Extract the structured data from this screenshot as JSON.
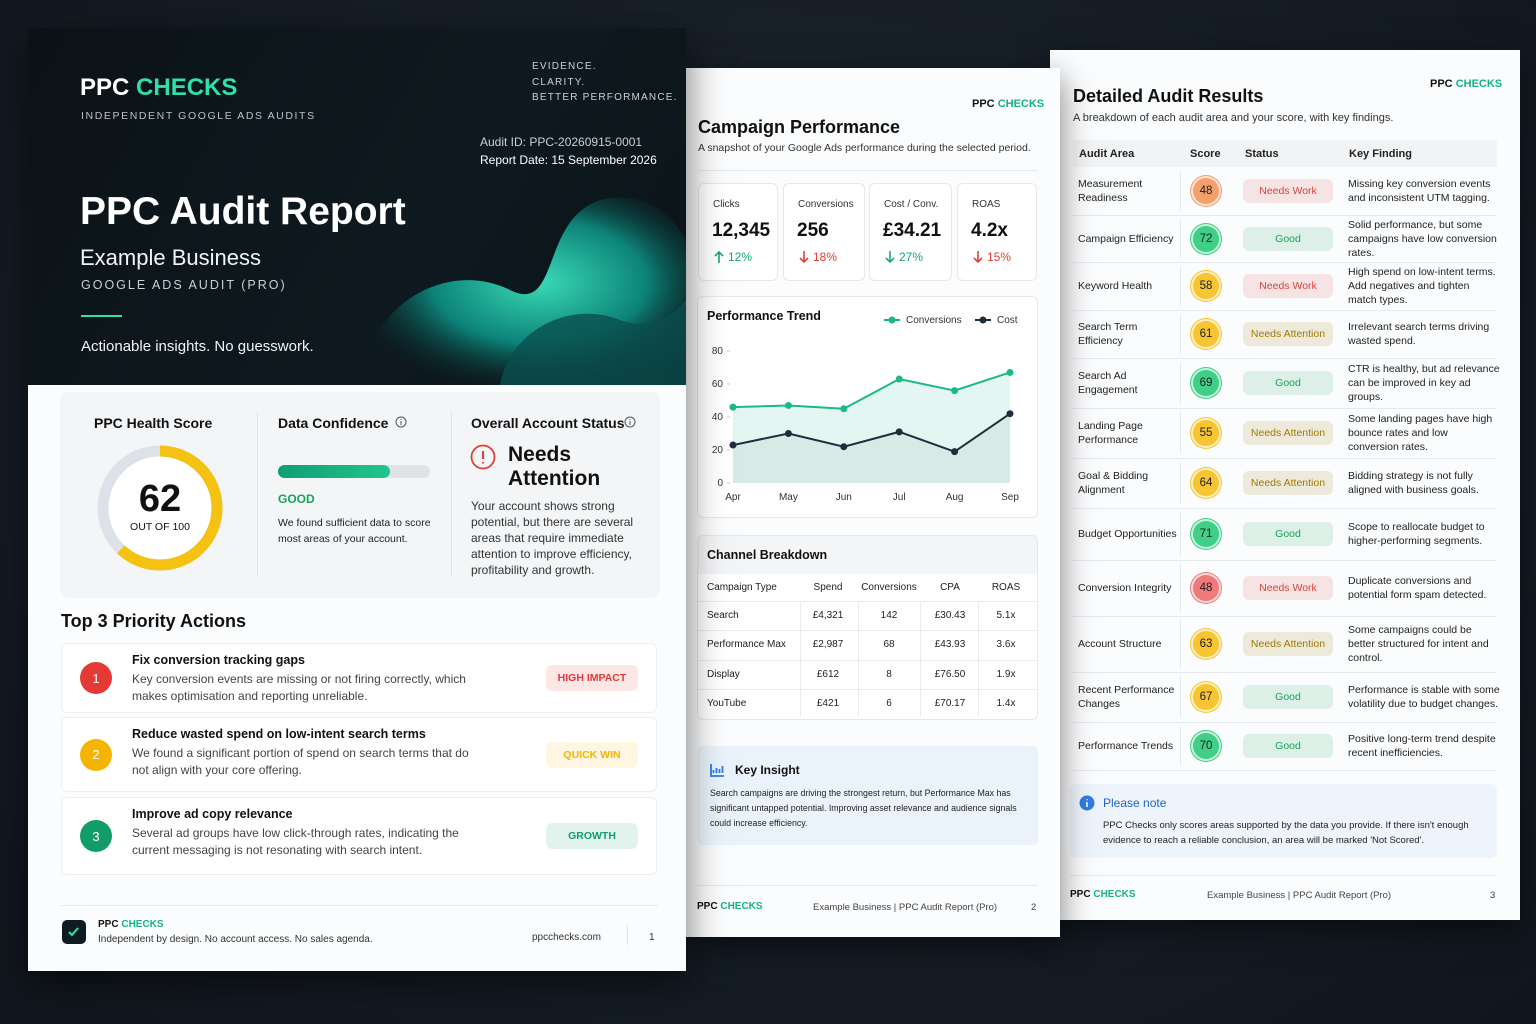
{
  "brand": {
    "ppc": "PPC",
    "checks": "CHECKS"
  },
  "page1": {
    "tagline": "INDEPENDENT GOOGLE ADS AUDITS",
    "motto": [
      "EVIDENCE.",
      "CLARITY.",
      "BETTER PERFORMANCE."
    ],
    "audit_id": "Audit ID: PPC-20260915-0001",
    "report_date": "Report Date: 15 September 2026",
    "title": "PPC Audit Report",
    "business": "Example Business",
    "subtitle": "GOOGLE ADS AUDIT (PRO)",
    "slogan": "Actionable insights. No guesswork.",
    "health": {
      "label": "PPC Health Score",
      "score": 62,
      "out_of": "OUT OF",
      "max": 100
    },
    "confidence": {
      "label": "Data Confidence",
      "level": "GOOD",
      "text": "We found sufficient data to score most areas of your account."
    },
    "status": {
      "label": "Overall Account Status",
      "value": "Needs Attention",
      "text": "Your account shows strong potential, but there are several areas that require immediate attention to improve efficiency, profitability and growth."
    },
    "actions": {
      "title": "Top 3 Priority Actions",
      "items": [
        {
          "num": 1,
          "title": "Fix conversion tracking gaps",
          "text": "Key conversion events are missing or not firing correctly, which makes optimisation and reporting unreliable.",
          "badge": "HIGH IMPACT",
          "color": "#e53935"
        },
        {
          "num": 2,
          "title": "Reduce wasted spend on low-intent search terms",
          "text": "We found a significant portion of spend on search terms that do not align with your core offering.",
          "badge": "QUICK WIN",
          "color": "#f5b400"
        },
        {
          "num": 3,
          "title": "Improve ad copy relevance",
          "text": "Several ad groups have low click-through rates, indicating the current messaging is not resonating with search intent.",
          "badge": "GROWTH",
          "color": "#129c6a"
        }
      ]
    },
    "footer": {
      "note": "Independent by design. No account access. No sales agenda.",
      "url": "ppcchecks.com",
      "page": 1
    }
  },
  "page2": {
    "title": "Campaign Performance",
    "subtitle": "A snapshot of your Google Ads performance during the selected period.",
    "kpis": [
      {
        "label": "Clicks",
        "value": "12,345",
        "change": "12%",
        "direction": "up",
        "color": "#17a873"
      },
      {
        "label": "Conversions",
        "value": "256",
        "change": "18%",
        "direction": "down",
        "color": "#e0413a"
      },
      {
        "label": "Cost / Conv.",
        "value": "£34.21",
        "change": "27%",
        "direction": "down",
        "color": "#17a873"
      },
      {
        "label": "ROAS",
        "value": "4.2x",
        "change": "15%",
        "direction": "down",
        "color": "#e0413a"
      }
    ],
    "trend": {
      "type": "line",
      "title": "Performance Trend",
      "categories": [
        "Apr",
        "May",
        "Jun",
        "Jul",
        "Aug",
        "Sep"
      ],
      "series": [
        {
          "name": "Conversions",
          "color": "#19b98a",
          "values": [
            46,
            47,
            45,
            63,
            56,
            67
          ]
        },
        {
          "name": "Cost",
          "color": "#1e2d3d",
          "values": [
            23,
            30,
            22,
            31,
            19,
            42
          ]
        }
      ],
      "ylim": [
        0,
        80
      ],
      "yticks": [
        0,
        20,
        40,
        60,
        80
      ]
    },
    "channels": {
      "title": "Channel Breakdown",
      "columns": [
        "Campaign Type",
        "Spend",
        "Conversions",
        "CPA",
        "ROAS"
      ],
      "rows": [
        [
          "Search",
          "£4,321",
          142,
          "£30.43",
          "5.1x"
        ],
        [
          "Performance Max",
          "£2,987",
          68,
          "£43.93",
          "3.6x"
        ],
        [
          "Display",
          "£612",
          8,
          "£76.50",
          "1.9x"
        ],
        [
          "YouTube",
          "£421",
          6,
          "£70.17",
          "1.4x"
        ]
      ]
    },
    "insight": {
      "title": "Key Insight",
      "text": "Search campaigns are driving the strongest return, but Performance Max has significant untapped potential. Improving asset relevance and audience signals could increase efficiency."
    },
    "footer": {
      "text": "Example Business | PPC Audit Report (Pro)",
      "page": 2
    }
  },
  "page3": {
    "title": "Detailed Audit Results",
    "subtitle": "A breakdown of each audit area and your score, with key findings.",
    "columns": [
      "Audit Area",
      "Score",
      "Status",
      "Key Finding"
    ],
    "rows": [
      {
        "area": "Measurement Readiness",
        "score": 48,
        "color": "#f4a06b",
        "status": "Needs Work",
        "status_color": "#d9453b",
        "finding": "Missing key conversion events and inconsistent UTM tagging."
      },
      {
        "area": "Campaign Efficiency",
        "score": 72,
        "color": "#3fcf86",
        "status": "Good",
        "status_color": "#17a35a",
        "finding": "Solid performance, but some campaigns have low conversion rates."
      },
      {
        "area": "Keyword Health",
        "score": 58,
        "color": "#f7c531",
        "status": "Needs Work",
        "status_color": "#d9453b",
        "finding": "High spend on low-intent terms. Add negatives and tighten match types."
      },
      {
        "area": "Search Term Efficiency",
        "score": 61,
        "color": "#f7c531",
        "status": "Needs Attention",
        "status_color": "#a07a00",
        "finding": "Irrelevant search terms driving wasted spend."
      },
      {
        "area": "Search Ad Engagement",
        "score": 69,
        "color": "#3fcf86",
        "status": "Good",
        "status_color": "#17a35a",
        "finding": "CTR is healthy, but ad relevance can be improved in key ad groups."
      },
      {
        "area": "Landing Page Performance",
        "score": 55,
        "color": "#f7c531",
        "status": "Needs Attention",
        "status_color": "#a07a00",
        "finding": "Some landing pages have high bounce rates and low conversion rates."
      },
      {
        "area": "Goal & Bidding Alignment",
        "score": 64,
        "color": "#f7c531",
        "status": "Needs Attention",
        "status_color": "#a07a00",
        "finding": "Bidding strategy is not fully aligned with business goals."
      },
      {
        "area": "Budget Opportunities",
        "score": 71,
        "color": "#3fcf86",
        "status": "Good",
        "status_color": "#17a35a",
        "finding": "Scope to reallocate budget to higher-performing segments."
      },
      {
        "area": "Conversion Integrity",
        "score": 48,
        "color": "#f07a7a",
        "status": "Needs Work",
        "status_color": "#d9453b",
        "finding": "Duplicate conversions and potential form spam detected."
      },
      {
        "area": "Account Structure",
        "score": 63,
        "color": "#f7c531",
        "status": "Needs Attention",
        "status_color": "#a07a00",
        "finding": "Some campaigns could be better structured for intent and control."
      },
      {
        "area": "Recent Performance Changes",
        "score": 67,
        "color": "#f7c531",
        "status": "Good",
        "status_color": "#17a35a",
        "finding": "Performance is stable with some volatility due to budget changes."
      },
      {
        "area": "Performance Trends",
        "score": 70,
        "color": "#3fcf86",
        "status": "Good",
        "status_color": "#17a35a",
        "finding": "Positive long-term trend despite recent inefficiencies."
      }
    ],
    "note": {
      "title": "Please note",
      "text": "PPC Checks only scores areas supported by the data you provide. If there isn't enough evidence to reach a reliable conclusion, an area will be marked 'Not Scored'."
    },
    "footer": {
      "text": "Example Business | PPC Audit Report (Pro)",
      "page": 3
    }
  }
}
